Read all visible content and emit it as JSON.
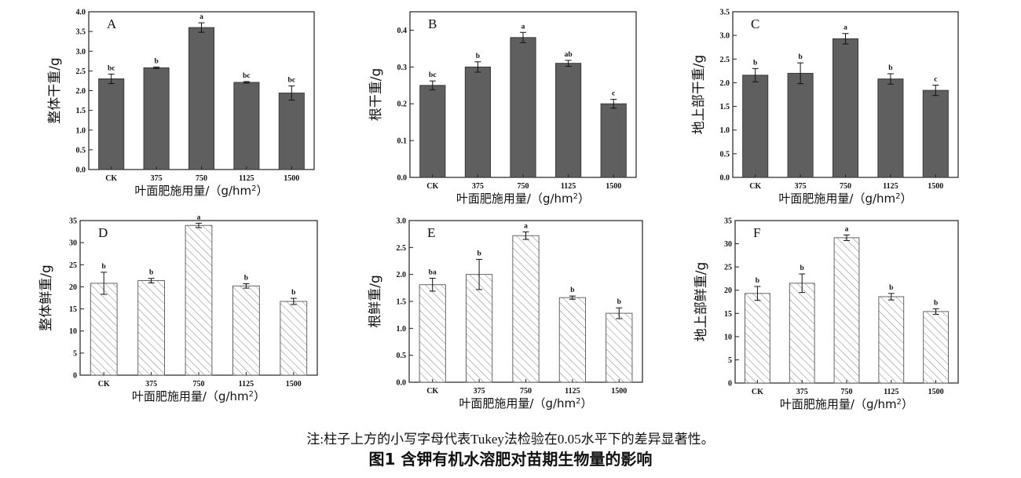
{
  "figure": {
    "note": "注:柱子上方的小写字母代表Tukey法检验在0.05水平下的差异显著性。",
    "title": "图1  含钾有机水溶肥对苗期生物量的影响"
  },
  "colors": {
    "dark_fill": "#5f5f5f",
    "hatch_stroke": "#8a8a8a",
    "axis": "#222222"
  },
  "chart_data": [
    {
      "type": "bar",
      "panel": "A",
      "fill": "solid",
      "categories": [
        "CK",
        "375",
        "750",
        "1125",
        "1500"
      ],
      "values": [
        2.3,
        2.58,
        3.6,
        2.21,
        1.94
      ],
      "errors": [
        0.12,
        0.02,
        0.12,
        0.02,
        0.18
      ],
      "letters": [
        "bc",
        "b",
        "a",
        "bc",
        "bc"
      ],
      "ylim": [
        0,
        4.0
      ],
      "yticks": [
        "0.0",
        "0.5",
        "1.0",
        "1.5",
        "2.0",
        "2.5",
        "3.0",
        "3.5",
        "4.0"
      ],
      "ylabel": "整体干重/g",
      "xlabel": "叶面肥施用量/（g/hm²）",
      "grid": false
    },
    {
      "type": "bar",
      "panel": "B",
      "fill": "solid",
      "categories": [
        "CK",
        "375",
        "750",
        "1125",
        "1500"
      ],
      "values": [
        0.25,
        0.3,
        0.38,
        0.31,
        0.2
      ],
      "errors": [
        0.012,
        0.014,
        0.014,
        0.008,
        0.012
      ],
      "letters": [
        "bc",
        "b",
        "a",
        "ab",
        "c"
      ],
      "ylim": [
        0,
        0.45
      ],
      "yticks": [
        "0.0",
        "0.1",
        "0.2",
        "0.3",
        "0.4"
      ],
      "ylabel": "根干重/g",
      "xlabel": "叶面肥施用量/（g/hm²）",
      "grid": false
    },
    {
      "type": "bar",
      "panel": "C",
      "fill": "solid",
      "categories": [
        "CK",
        "375",
        "750",
        "1125",
        "1500"
      ],
      "values": [
        2.16,
        2.2,
        2.93,
        2.08,
        1.84
      ],
      "errors": [
        0.14,
        0.22,
        0.11,
        0.11,
        0.11
      ],
      "letters": [
        "b",
        "b",
        "a",
        "b",
        "c"
      ],
      "ylim": [
        0,
        3.5
      ],
      "yticks": [
        "0.0",
        "0.5",
        "1.0",
        "1.5",
        "2.0",
        "2.5",
        "3.0",
        "3.5"
      ],
      "ylabel": "地上部干重/g",
      "xlabel": "叶面肥施用量/（g/hm²）",
      "grid": false
    },
    {
      "type": "bar",
      "panel": "D",
      "fill": "hatched",
      "categories": [
        "CK",
        "375",
        "750",
        "1125",
        "1500"
      ],
      "values": [
        20.8,
        21.4,
        33.9,
        20.2,
        16.7
      ],
      "errors": [
        2.5,
        0.5,
        0.5,
        0.5,
        0.7
      ],
      "letters": [
        "b",
        "b",
        "a",
        "b",
        "b"
      ],
      "ylim": [
        0,
        35
      ],
      "yticks": [
        "0",
        "5",
        "10",
        "15",
        "20",
        "25",
        "30",
        "35"
      ],
      "ylabel": "整体鲜重/g",
      "xlabel": "叶面肥施用量/（g/hm²）",
      "grid": false
    },
    {
      "type": "bar",
      "panel": "E",
      "fill": "hatched",
      "categories": [
        "CK",
        "375",
        "750",
        "1125",
        "1500"
      ],
      "values": [
        1.81,
        2.0,
        2.72,
        1.57,
        1.28
      ],
      "errors": [
        0.12,
        0.28,
        0.07,
        0.03,
        0.1
      ],
      "letters": [
        "ba",
        "b",
        "a",
        "b",
        "b"
      ],
      "ylim": [
        0,
        3.0
      ],
      "yticks": [
        "0.0",
        "0.5",
        "1.0",
        "1.5",
        "2.0",
        "2.5",
        "3.0"
      ],
      "ylabel": "根鲜重/g",
      "xlabel": "叶面肥施用量/（g/hm²）",
      "grid": false
    },
    {
      "type": "bar",
      "panel": "F",
      "fill": "hatched",
      "categories": [
        "CK",
        "375",
        "750",
        "1125",
        "1500"
      ],
      "values": [
        19.3,
        21.5,
        31.3,
        18.6,
        15.4
      ],
      "errors": [
        1.5,
        2.0,
        0.6,
        0.7,
        0.6
      ],
      "letters": [
        "b",
        "b",
        "a",
        "b",
        "b"
      ],
      "ylim": [
        0,
        35
      ],
      "yticks": [
        "0",
        "5",
        "10",
        "15",
        "20",
        "25",
        "30",
        "35"
      ],
      "ylabel": "地上部鲜重/g",
      "xlabel": "叶面肥施用量/（g/hm²）",
      "grid": false
    }
  ]
}
